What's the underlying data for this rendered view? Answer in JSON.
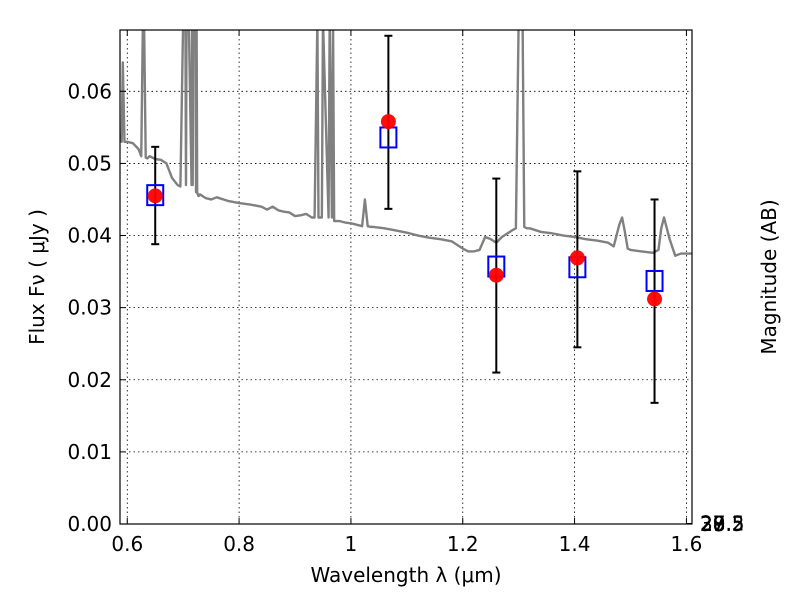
{
  "chart_data": {
    "type": "scatter",
    "xlabel": "Wavelength  λ (μm)",
    "ylabel": "Flux  Fν  ( μJy )",
    "y2label": "Magnitude (AB)",
    "xlim": [
      0.587,
      1.61
    ],
    "ylim": [
      0.0,
      0.0685
    ],
    "x_ticks": [
      0.6,
      0.8,
      1.0,
      1.2,
      1.4,
      1.6
    ],
    "x_tick_labels": [
      "0.6",
      "0.8",
      "1",
      "1.2",
      "1.4",
      "1.6"
    ],
    "y_ticks": [
      0.0,
      0.01,
      0.02,
      0.03,
      0.04,
      0.05,
      0.06
    ],
    "y_tick_labels": [
      "0.00",
      "0.01",
      "0.02",
      "0.03",
      "0.04",
      "0.05",
      "0.06"
    ],
    "y2_ticks": [
      27,
      27.2,
      27.5,
      28,
      28.5,
      29,
      30
    ],
    "y2_tick_labels": [
      "27",
      "27.2",
      "27.5",
      "28",
      "28.5",
      "29",
      "30"
    ],
    "grid": true,
    "series": [
      {
        "kind": "spectrum",
        "color": "#808080",
        "x": [
          0.587,
          0.59,
          0.592,
          0.595,
          0.6,
          0.61,
          0.62,
          0.625,
          0.628,
          0.63,
          0.633,
          0.636,
          0.64,
          0.65,
          0.66,
          0.67,
          0.68,
          0.69,
          0.695,
          0.7,
          0.704,
          0.705,
          0.706,
          0.71,
          0.715,
          0.716,
          0.717,
          0.718,
          0.722,
          0.723,
          0.724,
          0.725,
          0.727,
          0.728,
          0.73,
          0.74,
          0.75,
          0.76,
          0.78,
          0.8,
          0.82,
          0.84,
          0.85,
          0.86,
          0.87,
          0.88,
          0.89,
          0.9,
          0.91,
          0.92,
          0.93,
          0.935,
          0.94,
          0.942,
          0.948,
          0.95,
          0.96,
          0.962,
          0.966,
          0.968,
          0.97,
          0.975,
          0.98,
          0.99,
          1.0,
          1.01,
          1.02,
          1.025,
          1.03,
          1.035,
          1.04,
          1.06,
          1.08,
          1.1,
          1.12,
          1.14,
          1.16,
          1.18,
          1.2,
          1.21,
          1.22,
          1.23,
          1.24,
          1.25,
          1.26,
          1.27,
          1.28,
          1.29,
          1.295,
          1.3,
          1.305,
          1.307,
          1.31,
          1.315,
          1.32,
          1.34,
          1.36,
          1.38,
          1.4,
          1.42,
          1.44,
          1.46,
          1.47,
          1.48,
          1.485,
          1.49,
          1.495,
          1.5,
          1.52,
          1.54,
          1.55,
          1.555,
          1.56,
          1.57,
          1.58,
          1.59,
          1.61
        ],
        "y": [
          0.054,
          0.053,
          0.064,
          0.053,
          0.053,
          0.0528,
          0.052,
          0.051,
          0.07,
          0.07,
          0.0508,
          0.0507,
          0.051,
          0.0506,
          0.0505,
          0.05,
          0.048,
          0.047,
          0.0468,
          0.07,
          0.07,
          0.047,
          0.07,
          0.07,
          0.047,
          0.07,
          0.047,
          0.07,
          0.07,
          0.046,
          0.07,
          0.046,
          0.0455,
          0.0455,
          0.0457,
          0.0452,
          0.045,
          0.0453,
          0.0448,
          0.0445,
          0.0443,
          0.044,
          0.0436,
          0.044,
          0.0435,
          0.0433,
          0.0432,
          0.0427,
          0.0428,
          0.043,
          0.0425,
          0.0425,
          0.07,
          0.0425,
          0.0425,
          0.07,
          0.0425,
          0.07,
          0.0425,
          0.07,
          0.042,
          0.042,
          0.042,
          0.0418,
          0.0417,
          0.0415,
          0.0413,
          0.045,
          0.0413,
          0.0412,
          0.0412,
          0.041,
          0.0407,
          0.0404,
          0.04,
          0.0397,
          0.0395,
          0.0392,
          0.0382,
          0.0378,
          0.0378,
          0.038,
          0.0398,
          0.0395,
          0.039,
          0.0398,
          0.0403,
          0.0408,
          0.041,
          0.07,
          0.07,
          0.07,
          0.0412,
          0.041,
          0.041,
          0.0405,
          0.0403,
          0.04,
          0.0398,
          0.0395,
          0.0393,
          0.039,
          0.0385,
          0.0415,
          0.0425,
          0.0405,
          0.0382,
          0.038,
          0.0378,
          0.0376,
          0.038,
          0.041,
          0.0425,
          0.0395,
          0.0372,
          0.0375,
          0.0375
        ]
      },
      {
        "kind": "observed",
        "marker": "circle",
        "color": "#ff0000",
        "x": [
          0.65,
          1.067,
          1.26,
          1.405,
          1.543
        ],
        "y": [
          0.0455,
          0.0558,
          0.0345,
          0.0369,
          0.0312
        ]
      },
      {
        "kind": "model",
        "marker": "square",
        "color": "#0000ff",
        "x": [
          0.65,
          1.067,
          1.26,
          1.405,
          1.543
        ],
        "y": [
          0.0456,
          0.0536,
          0.0357,
          0.0356,
          0.0337
        ]
      },
      {
        "kind": "errorbars",
        "color": "#000000",
        "x": [
          0.65,
          1.067,
          1.26,
          1.405,
          1.543
        ],
        "ylow": [
          0.0388,
          0.0437,
          0.021,
          0.0245,
          0.0168
        ],
        "yhigh": [
          0.0523,
          0.0677,
          0.0479,
          0.0489,
          0.045
        ]
      }
    ]
  }
}
